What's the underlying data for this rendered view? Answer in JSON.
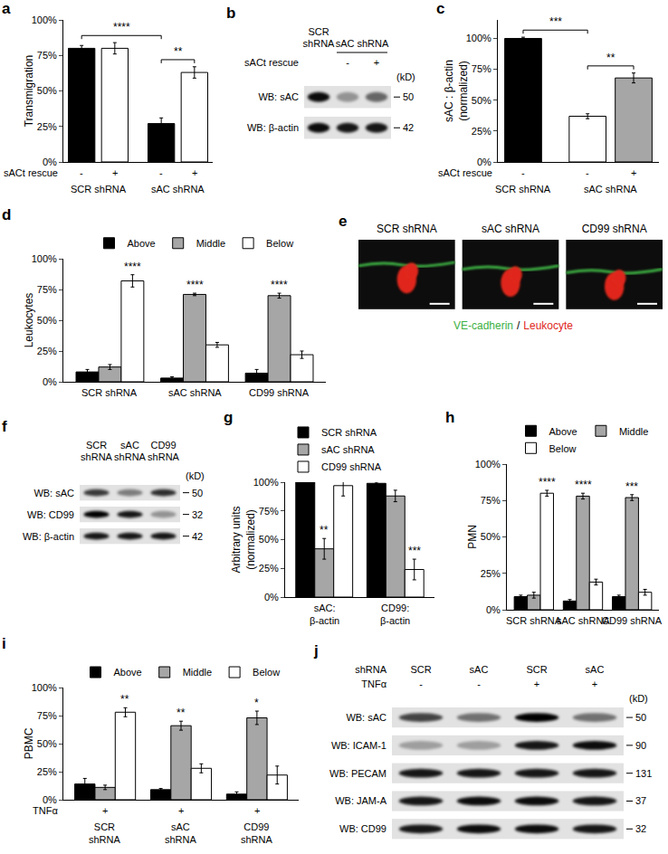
{
  "chart_data": [
    {
      "title": "a",
      "type": "bar",
      "y_label": "Transmigration",
      "ylim": [
        0,
        100
      ],
      "yticks": [
        {
          "value": 0,
          "label": "0%"
        },
        {
          "value": 25,
          "label": "25%"
        },
        {
          "value": 50,
          "label": "50%"
        },
        {
          "value": 75,
          "label": "75%"
        },
        {
          "value": 100,
          "label": "100%"
        }
      ],
      "grid": false,
      "x_label": "sACt rescue",
      "categories": [
        "-",
        "+",
        "-",
        "+"
      ],
      "groups": [
        "SCR shRNA",
        "SCR shRNA",
        "sAC shRNA",
        "sAC shRNA"
      ],
      "values": [
        80,
        80,
        27,
        63
      ],
      "errors": [
        2,
        4,
        4,
        4
      ],
      "colors": [
        "#000000",
        "#ffffff",
        "#000000",
        "#ffffff"
      ],
      "brackets": [
        {
          "text": "****",
          "from": 0,
          "to": 2
        },
        {
          "text": "**",
          "from": 2,
          "to": 3
        }
      ]
    },
    {
      "title": "c",
      "type": "bar",
      "y_label": "sAC : β-actin\n(normalized)",
      "ylim": [
        0,
        115
      ],
      "yticks": [
        {
          "value": 0,
          "label": "0%"
        },
        {
          "value": 25,
          "label": "25%"
        },
        {
          "value": 50,
          "label": "50%"
        },
        {
          "value": 75,
          "label": "75%"
        },
        {
          "value": 100,
          "label": "100%"
        }
      ],
      "grid": false,
      "x_label": "sACt rescue",
      "categories": [
        "-",
        "-",
        "+"
      ],
      "groups": [
        "SCR shRNA",
        "sAC shRNA",
        "sAC shRNA"
      ],
      "values": [
        100,
        37,
        68
      ],
      "errors": [
        1,
        2,
        4
      ],
      "colors": [
        "#000000",
        "#ffffff",
        "#a6a6a6"
      ],
      "brackets": [
        {
          "text": "***",
          "from": 0,
          "to": 1
        },
        {
          "text": "**",
          "from": 1,
          "to": 2
        }
      ]
    },
    {
      "title": "d",
      "type": "bar",
      "y_label": "Leukocytes",
      "ylim": [
        0,
        100
      ],
      "yticks": [
        {
          "value": 0,
          "label": "0%"
        },
        {
          "value": 25,
          "label": "25%"
        },
        {
          "value": 50,
          "label": "50%"
        },
        {
          "value": 75,
          "label": "75%"
        },
        {
          "value": 100,
          "label": "100%"
        }
      ],
      "grid": false,
      "legend": "top",
      "categories": [
        "SCR shRNA",
        "sAC shRNA",
        "CD99 shRNA"
      ],
      "series": [
        {
          "name": "Above",
          "color": "#000000",
          "values": [
            8,
            3,
            7
          ],
          "errors": [
            2,
            1,
            3
          ]
        },
        {
          "name": "Middle",
          "color": "#a6a6a6",
          "values": [
            12,
            71,
            70
          ],
          "errors": [
            2,
            1,
            2
          ]
        },
        {
          "name": "Below",
          "color": "#ffffff",
          "values": [
            82,
            30,
            22
          ],
          "errors": [
            5,
            2,
            3
          ]
        }
      ],
      "marks": [
        {
          "text": "****",
          "category": 0,
          "series": 2
        },
        {
          "text": "****",
          "category": 1,
          "series": 1
        },
        {
          "text": "****",
          "category": 2,
          "series": 1
        }
      ]
    },
    {
      "title": "g",
      "type": "bar",
      "y_label": "Arbitrary units\n(normalized)",
      "ylim": [
        0,
        100
      ],
      "yticks": [
        {
          "value": 0,
          "label": "0%"
        },
        {
          "value": 25,
          "label": "25%"
        },
        {
          "value": 50,
          "label": "50%"
        },
        {
          "value": 75,
          "label": "75%"
        },
        {
          "value": 100,
          "label": "100%"
        }
      ],
      "grid": false,
      "legend": "top-left",
      "categories": [
        "sAC:\nβ-actin",
        "CD99:\nβ-actin"
      ],
      "series": [
        {
          "name": "SCR shRNA",
          "color": "#000000",
          "values": [
            100,
            99
          ],
          "errors": [
            1,
            1
          ]
        },
        {
          "name": "sAC shRNA",
          "color": "#a6a6a6",
          "values": [
            42,
            88
          ],
          "errors": [
            9,
            5
          ]
        },
        {
          "name": "CD99 shRNA",
          "color": "#ffffff",
          "values": [
            97,
            24
          ],
          "errors": [
            9,
            9
          ]
        }
      ],
      "marks": [
        {
          "text": "**",
          "category": 0,
          "series": 1
        },
        {
          "text": "***",
          "category": 1,
          "series": 2
        }
      ]
    },
    {
      "title": "h",
      "type": "bar",
      "y_label": "PMN",
      "ylim": [
        0,
        100
      ],
      "yticks": [
        {
          "value": 0,
          "label": "0%"
        },
        {
          "value": 25,
          "label": "25%"
        },
        {
          "value": 50,
          "label": "50%"
        },
        {
          "value": 75,
          "label": "75%"
        },
        {
          "value": 100,
          "label": "100%"
        }
      ],
      "grid": false,
      "legend": "top",
      "categories": [
        "SCR shRNA",
        "sAC shRNA",
        "CD99 shRNA"
      ],
      "series": [
        {
          "name": "Above",
          "color": "#000000",
          "values": [
            9,
            6,
            9
          ],
          "errors": [
            1,
            1,
            1
          ]
        },
        {
          "name": "Middle",
          "color": "#a6a6a6",
          "values": [
            10,
            78,
            77
          ],
          "errors": [
            2,
            2,
            2
          ]
        },
        {
          "name": "Below",
          "color": "#ffffff",
          "values": [
            80,
            19,
            12
          ],
          "errors": [
            2,
            2,
            2
          ]
        }
      ],
      "marks": [
        {
          "text": "****",
          "category": 0,
          "series": 2
        },
        {
          "text": "****",
          "category": 1,
          "series": 1
        },
        {
          "text": "***",
          "category": 2,
          "series": 1
        }
      ]
    },
    {
      "title": "i",
      "type": "bar",
      "y_label": "PBMC",
      "ylim": [
        0,
        100
      ],
      "yticks": [
        {
          "value": 0,
          "label": "0%"
        },
        {
          "value": 25,
          "label": "25%"
        },
        {
          "value": 50,
          "label": "50%"
        },
        {
          "value": 75,
          "label": "75%"
        },
        {
          "value": 100,
          "label": "100%"
        }
      ],
      "grid": false,
      "legend": "top",
      "condition": {
        "label": "TNFα",
        "values": [
          "+",
          "+",
          "+"
        ]
      },
      "categories": [
        "SCR\nshRNA",
        "sAC\nshRNA",
        "CD99\nshRNA"
      ],
      "series": [
        {
          "name": "Above",
          "color": "#000000",
          "values": [
            14,
            9,
            5
          ],
          "errors": [
            5,
            1,
            2
          ]
        },
        {
          "name": "Middle",
          "color": "#a6a6a6",
          "values": [
            11,
            66,
            73
          ],
          "errors": [
            2,
            4,
            6
          ]
        },
        {
          "name": "Below",
          "color": "#ffffff",
          "values": [
            78,
            28,
            22
          ],
          "errors": [
            4,
            4,
            8
          ]
        }
      ],
      "marks": [
        {
          "text": "**",
          "category": 0,
          "series": 2
        },
        {
          "text": "**",
          "category": 1,
          "series": 1
        },
        {
          "text": "*",
          "category": 2,
          "series": 1
        }
      ]
    }
  ],
  "blots": [
    {
      "title": "b",
      "kd_label": "(kD)",
      "lane_groups": [
        "SCR shRNA",
        "sAC shRNA",
        "sAC shRNA"
      ],
      "conditions": [
        {
          "label": "sACt rescue",
          "values": [
            null,
            "-",
            "+"
          ]
        }
      ],
      "rows": [
        {
          "label": "WB: sAC",
          "kd": 50,
          "bands": [
            0.95,
            0.35,
            0.55
          ]
        },
        {
          "label": "WB: β-actin",
          "kd": 42,
          "bands": [
            0.95,
            0.9,
            0.9
          ]
        }
      ]
    },
    {
      "title": "f",
      "kd_label": "(kD)",
      "lane_groups": [
        "SCR shRNA",
        "sAC shRNA",
        "CD99 shRNA"
      ],
      "conditions": [],
      "rows": [
        {
          "label": "WB: sAC",
          "kd": 50,
          "bands": [
            0.75,
            0.45,
            0.8
          ]
        },
        {
          "label": "WB: CD99",
          "kd": 32,
          "bands": [
            1.0,
            0.9,
            0.35
          ]
        },
        {
          "label": "WB: β-actin",
          "kd": 42,
          "bands": [
            0.9,
            0.9,
            0.9
          ]
        }
      ]
    },
    {
      "title": "j",
      "kd_label": "(kD)",
      "conditions": [
        {
          "label": "shRNA",
          "values": [
            "SCR",
            "sAC",
            "SCR",
            "sAC"
          ]
        },
        {
          "label": "TNFα",
          "values": [
            "-",
            "-",
            "+",
            "+"
          ]
        }
      ],
      "rows": [
        {
          "label": "WB: sAC",
          "kd": 50,
          "bands": [
            0.7,
            0.5,
            1.0,
            0.5
          ]
        },
        {
          "label": "WB: ICAM-1",
          "kd": 90,
          "bands": [
            0.3,
            0.3,
            0.9,
            0.95
          ]
        },
        {
          "label": "WB: PECAM",
          "kd": 131,
          "bands": [
            0.9,
            0.9,
            0.9,
            0.9
          ]
        },
        {
          "label": "WB: JAM-A",
          "kd": 37,
          "bands": [
            0.9,
            0.95,
            0.95,
            0.9
          ]
        },
        {
          "label": "WB: CD99",
          "kd": 32,
          "bands": [
            0.9,
            0.95,
            0.95,
            0.9
          ]
        }
      ]
    }
  ],
  "micrographs": [
    {
      "title": "e",
      "labels": [
        "SCR shRNA",
        "sAC shRNA",
        "CD99 shRNA"
      ],
      "channels": [
        {
          "name": "VE-cadherin",
          "color": "#3cb043"
        },
        {
          "name": "Leukocyte",
          "color": "#e0281c"
        }
      ],
      "separator": "/"
    }
  ]
}
